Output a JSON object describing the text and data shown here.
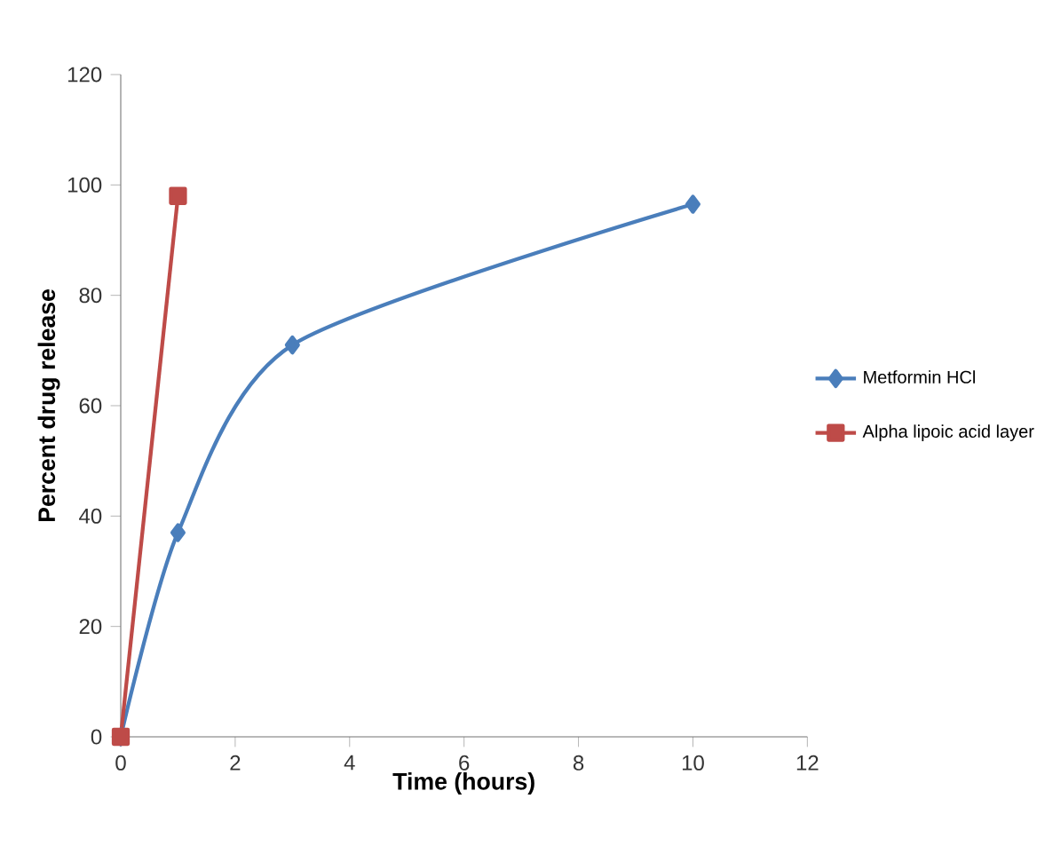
{
  "chart_data": {
    "type": "line",
    "xlabel": "Time (hours)",
    "ylabel": "Percent drug release",
    "series": [
      {
        "name": "Metformin HCl",
        "color": "#4a7ebb",
        "marker": "diamond",
        "x": [
          0,
          1,
          3,
          10
        ],
        "values": [
          0,
          37,
          71,
          96.5
        ]
      },
      {
        "name": "Alpha lipoic acid layer",
        "color": "#be4b48",
        "marker": "square",
        "x": [
          0,
          1
        ],
        "values": [
          0,
          98
        ]
      }
    ],
    "xlim": [
      0,
      12
    ],
    "ylim": [
      0,
      120
    ],
    "xticks": [
      0,
      2,
      4,
      6,
      8,
      10,
      12
    ],
    "yticks": [
      0,
      20,
      40,
      60,
      80,
      100,
      120
    ],
    "grid": false,
    "legend": "right"
  }
}
